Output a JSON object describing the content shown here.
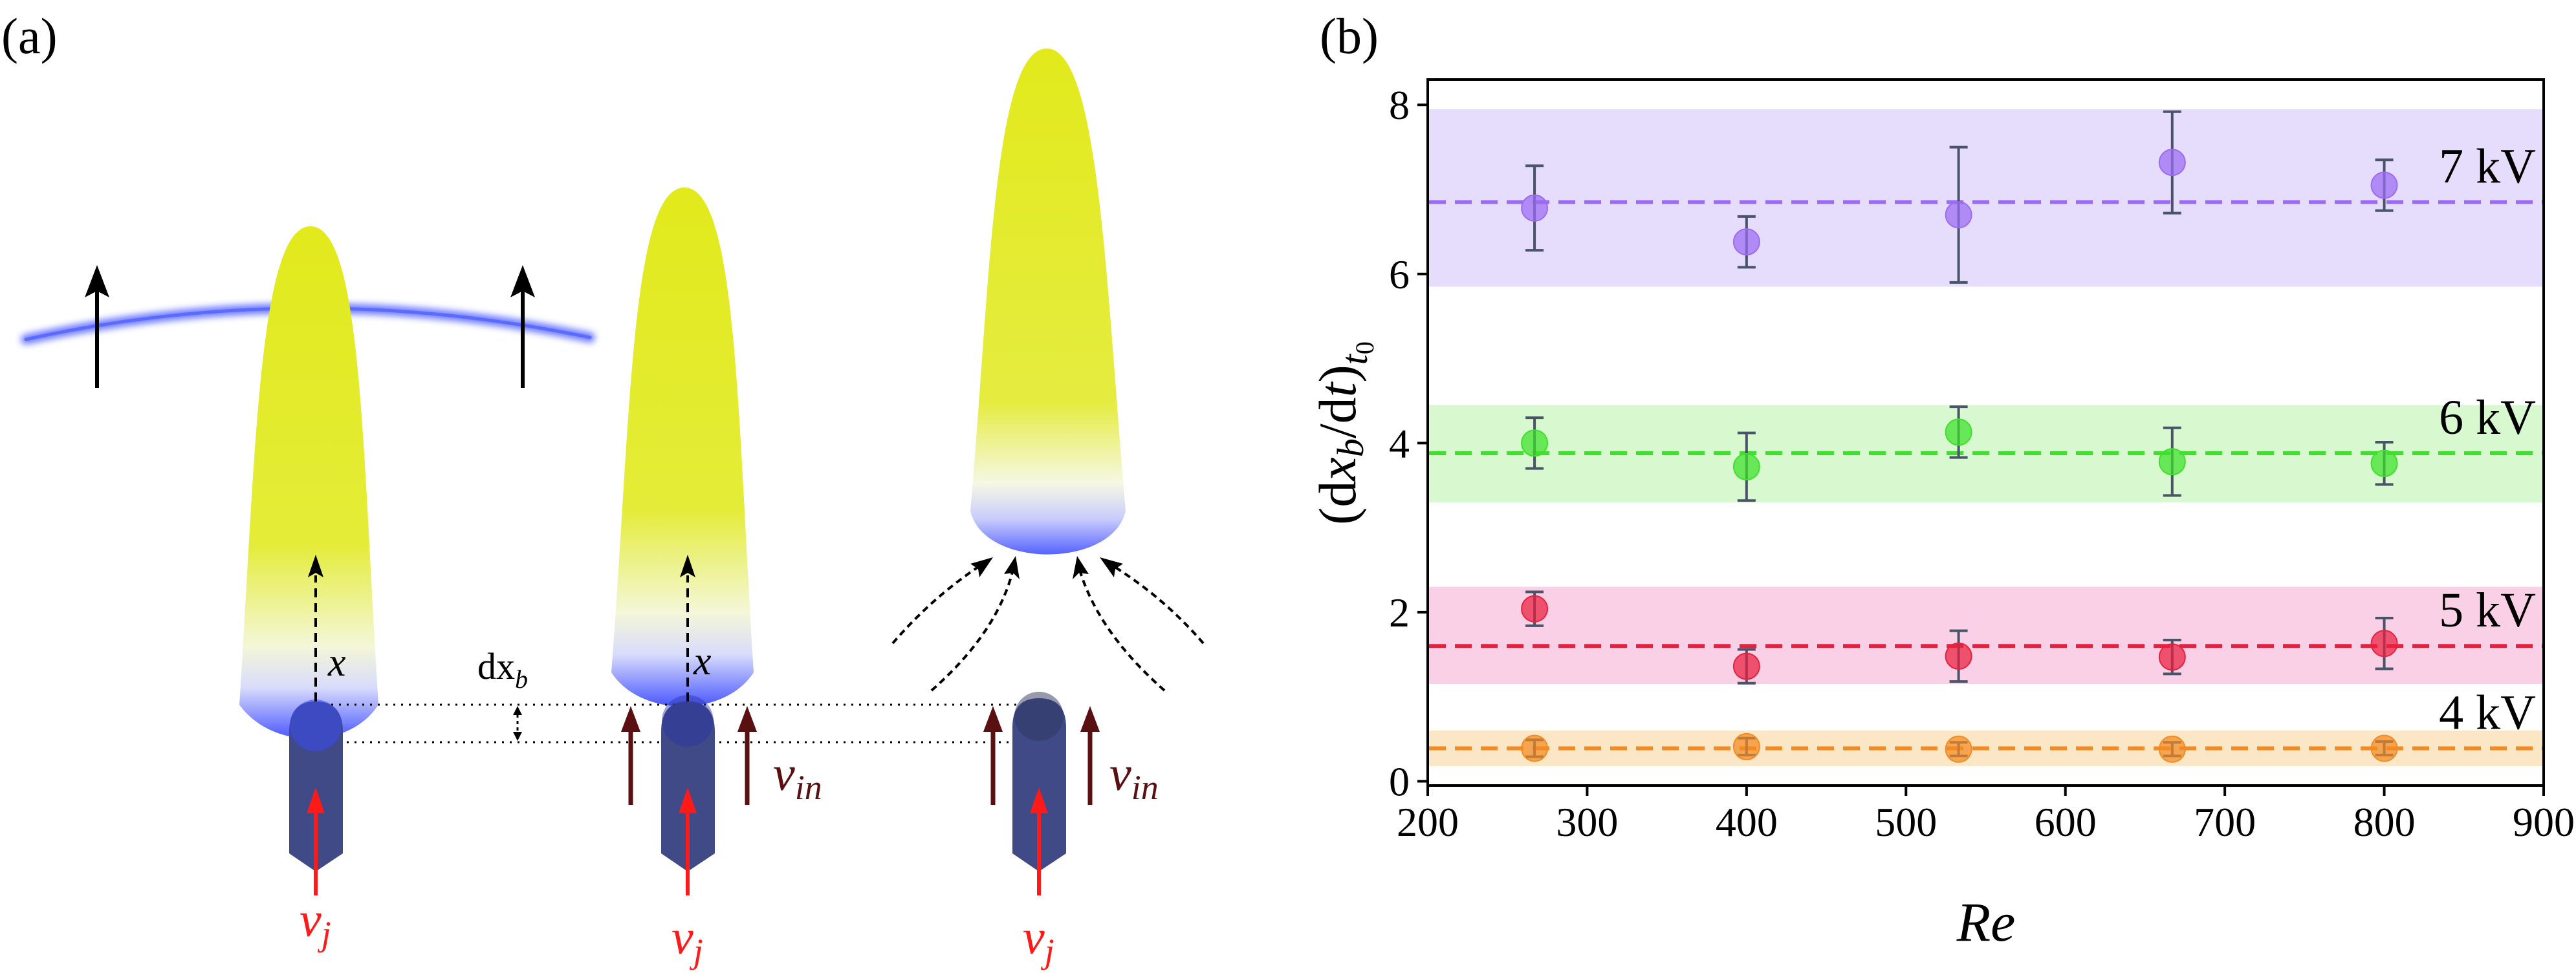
{
  "panel_a": {
    "label": "(a)",
    "annotations": {
      "x_axis_1": "x",
      "x_axis_2": "x",
      "dx_b": "dx",
      "dx_b_sub": "b",
      "v_in_1": "v",
      "v_in_1_sub": "in",
      "v_in_2": "v",
      "v_in_2_sub": "in",
      "v_j_1": "v",
      "v_j_1_sub": "j",
      "v_j_2": "v",
      "v_j_2_sub": "j",
      "v_j_3": "v",
      "v_j_3_sub": "j"
    },
    "colors": {
      "plume_yellow": "#dfe81f",
      "plume_blue": "#3d4cff",
      "nozzle": "#3f4a86",
      "jet_arrow": "#ff1a1a",
      "inflow_arrow": "#5a1010",
      "front": "#5a6bff"
    }
  },
  "panel_b": {
    "label": "(b)"
  },
  "chart_data": {
    "type": "scatter",
    "title": "",
    "xlabel": "Re",
    "ylabel": "(dx_b/dt)_t0",
    "xlim": [
      200,
      900
    ],
    "ylim": [
      -0.05,
      8.3
    ],
    "xticks": [
      "200",
      "300",
      "400",
      "500",
      "600",
      "700",
      "800",
      "900"
    ],
    "yticks": [
      "0",
      "2",
      "4",
      "6",
      "8"
    ],
    "x": [
      267,
      400,
      533,
      667,
      800
    ],
    "series": [
      {
        "name": "7 kV",
        "color": "#9b6cf2",
        "band_color": "#e6dcfb",
        "mean": 6.85,
        "band": [
          5.85,
          7.95
        ],
        "values": [
          6.78,
          6.38,
          6.7,
          7.32,
          7.05
        ],
        "err_low": [
          0.5,
          0.3,
          0.8,
          0.6,
          0.3
        ],
        "err_high": [
          0.5,
          0.3,
          0.8,
          0.6,
          0.3
        ]
      },
      {
        "name": "6 kV",
        "color": "#3de02a",
        "band_color": "#d8f8cf",
        "mean": 3.88,
        "band": [
          3.3,
          4.45
        ],
        "values": [
          4.0,
          3.72,
          4.13,
          3.78,
          3.76
        ],
        "err_low": [
          0.3,
          0.4,
          0.3,
          0.4,
          0.25
        ],
        "err_high": [
          0.3,
          0.4,
          0.3,
          0.4,
          0.25
        ]
      },
      {
        "name": "5 kV",
        "color": "#e8203f",
        "band_color": "#fad0e6",
        "mean": 1.6,
        "band": [
          1.15,
          2.3
        ],
        "values": [
          2.04,
          1.36,
          1.48,
          1.47,
          1.63
        ],
        "err_low": [
          0.2,
          0.2,
          0.3,
          0.2,
          0.3
        ],
        "err_high": [
          0.2,
          0.2,
          0.3,
          0.2,
          0.3
        ]
      },
      {
        "name": "4 kV",
        "color": "#f28b22",
        "band_color": "#fbe6c6",
        "mean": 0.39,
        "band": [
          0.18,
          0.6
        ],
        "values": [
          0.39,
          0.41,
          0.38,
          0.38,
          0.39
        ],
        "err_low": [
          0.1,
          0.1,
          0.08,
          0.08,
          0.08
        ],
        "err_high": [
          0.1,
          0.1,
          0.08,
          0.08,
          0.08
        ]
      }
    ],
    "legend_placement": "inline labels on right"
  }
}
